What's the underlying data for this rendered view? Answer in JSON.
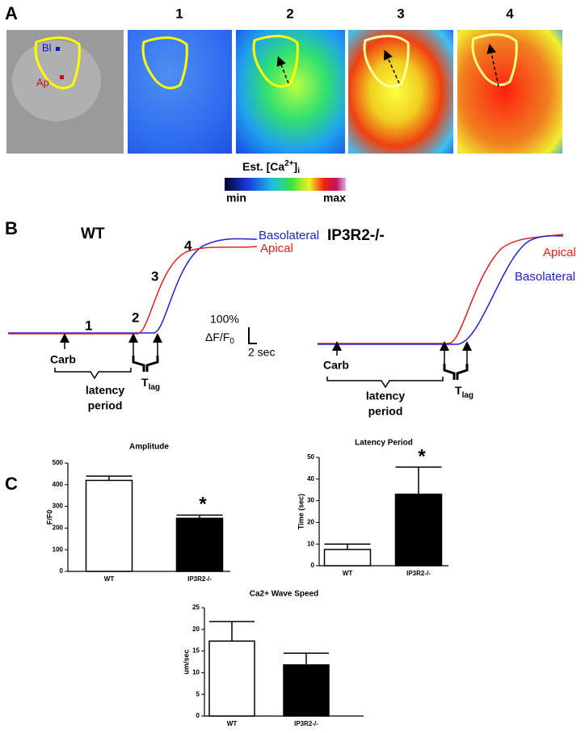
{
  "panel_a": {
    "label": "A",
    "frame_labels": [
      "1",
      "2",
      "3",
      "4"
    ],
    "region_labels": [
      "Bl",
      "Ap"
    ],
    "colorbar": {
      "title_main": "Est. [Ca",
      "title_sup": "2+",
      "title_close": "]",
      "title_sub": "i",
      "min": "min",
      "max": "max"
    }
  },
  "panel_b": {
    "label": "B",
    "wt": {
      "title": "WT",
      "phases": [
        "1",
        "2",
        "3",
        "4"
      ],
      "series": [
        "Basolateral",
        "Apical"
      ],
      "stimulus": "Carb",
      "latency": [
        "latency",
        "period"
      ],
      "tlag_main": "T",
      "tlag_sub": "lag"
    },
    "ko": {
      "title": "IP3R2-/-",
      "series": [
        "Apical",
        "Basolateral"
      ],
      "stimulus": "Carb",
      "latency": [
        "latency",
        "period"
      ],
      "tlag_main": "T",
      "tlag_sub": "lag"
    },
    "scale": {
      "y_amount": "100%",
      "y_unit_main": "ΔF/F",
      "y_unit_sub": "0",
      "x_amount": "2 sec"
    }
  },
  "panel_c": {
    "label": "C"
  },
  "chart_data": [
    {
      "type": "bar",
      "title": "Amplitude",
      "y_label": "F/F0",
      "categories": [
        "WT",
        "IP3R2-/-"
      ],
      "values": [
        420,
        245
      ],
      "errors": [
        20,
        15
      ],
      "colors": [
        "#ffffff",
        "#000000"
      ],
      "ylim": [
        0,
        500
      ],
      "yticks": [
        0,
        100,
        200,
        300,
        400,
        500
      ],
      "annotation": "*"
    },
    {
      "type": "bar",
      "title": "Latency Period",
      "y_label": "Time (sec)",
      "categories": [
        "WT",
        "IP3R2-/-"
      ],
      "values": [
        7.5,
        33
      ],
      "errors": [
        2.5,
        12.5
      ],
      "colors": [
        "#ffffff",
        "#000000"
      ],
      "ylim": [
        0,
        50
      ],
      "yticks": [
        0,
        10,
        20,
        30,
        40,
        50
      ],
      "annotation": "*"
    },
    {
      "type": "bar",
      "title": "Ca2+ Wave Speed",
      "y_label": "um/sec",
      "categories": [
        "WT",
        "IP3R2-/-"
      ],
      "values": [
        17.3,
        11.8
      ],
      "errors": [
        4.5,
        2.7
      ],
      "colors": [
        "#ffffff",
        "#000000"
      ],
      "ylim": [
        0,
        25
      ],
      "yticks": [
        0,
        5,
        10,
        15,
        20,
        25
      ]
    }
  ]
}
